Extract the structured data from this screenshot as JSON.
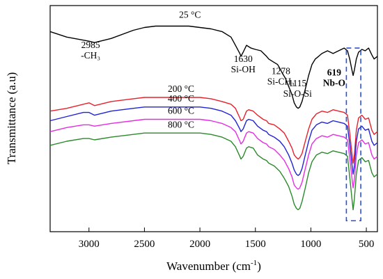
{
  "chart_data": {
    "type": "line",
    "title": "",
    "xlabel": "Wavenumber (cm",
    "xlabel_sup": "-1",
    "xlabel_tail": ")",
    "ylabel": "Transmittance (a.u)",
    "xlim": [
      3350,
      400
    ],
    "x_reversed": true,
    "y_ticks_shown": false,
    "grid": false,
    "x_ticks": [
      3000,
      2500,
      2000,
      1500,
      1000,
      500
    ],
    "x_tick_labels": [
      "3000",
      "2500",
      "2000",
      "1500",
      "1000",
      "500"
    ],
    "series": [
      {
        "name": "25 °C",
        "color": "#000000",
        "points": [
          [
            3350,
            86
          ],
          [
            3200,
            82
          ],
          [
            3000,
            79
          ],
          [
            2950,
            78
          ],
          [
            2800,
            81
          ],
          [
            2600,
            87
          ],
          [
            2500,
            89
          ],
          [
            2400,
            90
          ],
          [
            2300,
            90
          ],
          [
            2100,
            90
          ],
          [
            2000,
            89
          ],
          [
            1900,
            88
          ],
          [
            1800,
            86
          ],
          [
            1720,
            82
          ],
          [
            1680,
            76
          ],
          [
            1640,
            70
          ],
          [
            1630,
            68
          ],
          [
            1610,
            71
          ],
          [
            1580,
            76
          ],
          [
            1540,
            74
          ],
          [
            1500,
            73
          ],
          [
            1450,
            72
          ],
          [
            1400,
            68
          ],
          [
            1380,
            66
          ],
          [
            1340,
            64
          ],
          [
            1300,
            62
          ],
          [
            1278,
            59
          ],
          [
            1260,
            56
          ],
          [
            1230,
            52
          ],
          [
            1200,
            46
          ],
          [
            1170,
            40
          ],
          [
            1150,
            34
          ],
          [
            1130,
            31
          ],
          [
            1115,
            30
          ],
          [
            1100,
            31
          ],
          [
            1080,
            35
          ],
          [
            1050,
            44
          ],
          [
            1020,
            54
          ],
          [
            990,
            62
          ],
          [
            960,
            66
          ],
          [
            930,
            68
          ],
          [
            900,
            70
          ],
          [
            850,
            72
          ],
          [
            800,
            70
          ],
          [
            750,
            72
          ],
          [
            700,
            74
          ],
          [
            670,
            72
          ],
          [
            650,
            66
          ],
          [
            630,
            58
          ],
          [
            619,
            54
          ],
          [
            608,
            58
          ],
          [
            590,
            66
          ],
          [
            570,
            71
          ],
          [
            540,
            73
          ],
          [
            510,
            72
          ],
          [
            480,
            74
          ],
          [
            450,
            69
          ],
          [
            430,
            66
          ],
          [
            400,
            68
          ]
        ]
      },
      {
        "name": "200 °C",
        "color": "#e8202a",
        "points": [
          [
            3350,
            28
          ],
          [
            3200,
            30
          ],
          [
            3050,
            33
          ],
          [
            3000,
            34
          ],
          [
            2950,
            32
          ],
          [
            2800,
            35
          ],
          [
            2600,
            37
          ],
          [
            2500,
            38
          ],
          [
            2300,
            38
          ],
          [
            2100,
            38
          ],
          [
            2000,
            38
          ],
          [
            1900,
            37
          ],
          [
            1800,
            35
          ],
          [
            1720,
            33
          ],
          [
            1680,
            30
          ],
          [
            1640,
            23
          ],
          [
            1630,
            21
          ],
          [
            1610,
            22
          ],
          [
            1580,
            28
          ],
          [
            1560,
            29
          ],
          [
            1520,
            28
          ],
          [
            1480,
            25
          ],
          [
            1430,
            22
          ],
          [
            1400,
            21
          ],
          [
            1380,
            19
          ],
          [
            1330,
            18
          ],
          [
            1280,
            15
          ],
          [
            1240,
            12
          ],
          [
            1200,
            6
          ],
          [
            1170,
            1
          ],
          [
            1150,
            -4
          ],
          [
            1130,
            -6
          ],
          [
            1115,
            -7
          ],
          [
            1100,
            -6
          ],
          [
            1080,
            -3
          ],
          [
            1050,
            6
          ],
          [
            1020,
            15
          ],
          [
            990,
            22
          ],
          [
            950,
            26
          ],
          [
            900,
            28
          ],
          [
            850,
            27
          ],
          [
            800,
            29
          ],
          [
            750,
            28
          ],
          [
            700,
            27
          ],
          [
            670,
            25
          ],
          [
            650,
            12
          ],
          [
            630,
            -3
          ],
          [
            619,
            -10
          ],
          [
            608,
            -4
          ],
          [
            590,
            14
          ],
          [
            570,
            23
          ],
          [
            540,
            25
          ],
          [
            510,
            22
          ],
          [
            480,
            23
          ],
          [
            450,
            14
          ],
          [
            430,
            11
          ],
          [
            400,
            13
          ]
        ]
      },
      {
        "name": "400 °C",
        "color": "#1f22d6",
        "points": [
          [
            3350,
            21
          ],
          [
            3200,
            24
          ],
          [
            3050,
            27
          ],
          [
            3000,
            27
          ],
          [
            2950,
            25
          ],
          [
            2800,
            28
          ],
          [
            2600,
            30
          ],
          [
            2500,
            31
          ],
          [
            2300,
            31
          ],
          [
            2100,
            31
          ],
          [
            2000,
            31
          ],
          [
            1900,
            30
          ],
          [
            1800,
            28
          ],
          [
            1720,
            25
          ],
          [
            1680,
            21
          ],
          [
            1640,
            15
          ],
          [
            1630,
            13
          ],
          [
            1610,
            15
          ],
          [
            1580,
            21
          ],
          [
            1560,
            22
          ],
          [
            1520,
            21
          ],
          [
            1480,
            17
          ],
          [
            1430,
            14
          ],
          [
            1400,
            13
          ],
          [
            1380,
            11
          ],
          [
            1330,
            9
          ],
          [
            1280,
            6
          ],
          [
            1240,
            2
          ],
          [
            1200,
            -4
          ],
          [
            1170,
            -10
          ],
          [
            1150,
            -15
          ],
          [
            1130,
            -18
          ],
          [
            1115,
            -19
          ],
          [
            1100,
            -18
          ],
          [
            1080,
            -14
          ],
          [
            1050,
            -4
          ],
          [
            1020,
            6
          ],
          [
            990,
            14
          ],
          [
            950,
            18
          ],
          [
            900,
            20
          ],
          [
            850,
            19
          ],
          [
            800,
            21
          ],
          [
            750,
            20
          ],
          [
            700,
            19
          ],
          [
            670,
            17
          ],
          [
            650,
            4
          ],
          [
            630,
            -11
          ],
          [
            619,
            -18
          ],
          [
            608,
            -12
          ],
          [
            590,
            6
          ],
          [
            570,
            15
          ],
          [
            540,
            17
          ],
          [
            510,
            14
          ],
          [
            480,
            15
          ],
          [
            450,
            6
          ],
          [
            430,
            3
          ],
          [
            400,
            5
          ]
        ]
      },
      {
        "name": "600 °C",
        "color": "#e62ce3",
        "points": [
          [
            3350,
            13
          ],
          [
            3200,
            16
          ],
          [
            3050,
            18
          ],
          [
            3000,
            18
          ],
          [
            2950,
            17
          ],
          [
            2800,
            19
          ],
          [
            2600,
            21
          ],
          [
            2500,
            22
          ],
          [
            2300,
            22
          ],
          [
            2100,
            22
          ],
          [
            2000,
            22
          ],
          [
            1900,
            21
          ],
          [
            1800,
            19
          ],
          [
            1720,
            16
          ],
          [
            1680,
            13
          ],
          [
            1640,
            6
          ],
          [
            1630,
            4
          ],
          [
            1610,
            6
          ],
          [
            1580,
            12
          ],
          [
            1560,
            13
          ],
          [
            1520,
            12
          ],
          [
            1480,
            8
          ],
          [
            1430,
            5
          ],
          [
            1400,
            4
          ],
          [
            1380,
            2
          ],
          [
            1330,
            0
          ],
          [
            1280,
            -4
          ],
          [
            1240,
            -8
          ],
          [
            1200,
            -14
          ],
          [
            1170,
            -20
          ],
          [
            1150,
            -26
          ],
          [
            1130,
            -28
          ],
          [
            1115,
            -29
          ],
          [
            1100,
            -28
          ],
          [
            1080,
            -24
          ],
          [
            1050,
            -14
          ],
          [
            1020,
            -4
          ],
          [
            990,
            4
          ],
          [
            950,
            8
          ],
          [
            900,
            10
          ],
          [
            850,
            9
          ],
          [
            800,
            11
          ],
          [
            750,
            10
          ],
          [
            700,
            9
          ],
          [
            670,
            7
          ],
          [
            650,
            -6
          ],
          [
            630,
            -21
          ],
          [
            619,
            -28
          ],
          [
            608,
            -22
          ],
          [
            590,
            -4
          ],
          [
            570,
            5
          ],
          [
            540,
            7
          ],
          [
            510,
            4
          ],
          [
            480,
            5
          ],
          [
            450,
            -4
          ],
          [
            430,
            -7
          ],
          [
            400,
            -5
          ]
        ]
      },
      {
        "name": "800 °C",
        "color": "#2a8a2a",
        "points": [
          [
            3350,
            3
          ],
          [
            3200,
            6
          ],
          [
            3050,
            8
          ],
          [
            3000,
            8
          ],
          [
            2950,
            7
          ],
          [
            2800,
            9
          ],
          [
            2600,
            11
          ],
          [
            2500,
            12
          ],
          [
            2300,
            12
          ],
          [
            2100,
            12
          ],
          [
            2000,
            12
          ],
          [
            1900,
            11
          ],
          [
            1800,
            9
          ],
          [
            1720,
            6
          ],
          [
            1680,
            2
          ],
          [
            1640,
            -5
          ],
          [
            1630,
            -7
          ],
          [
            1610,
            -5
          ],
          [
            1580,
            1
          ],
          [
            1560,
            2
          ],
          [
            1520,
            1
          ],
          [
            1480,
            -4
          ],
          [
            1430,
            -7
          ],
          [
            1400,
            -8
          ],
          [
            1380,
            -10
          ],
          [
            1330,
            -12
          ],
          [
            1280,
            -16
          ],
          [
            1240,
            -21
          ],
          [
            1200,
            -27
          ],
          [
            1170,
            -34
          ],
          [
            1150,
            -40
          ],
          [
            1130,
            -43
          ],
          [
            1115,
            -44
          ],
          [
            1100,
            -43
          ],
          [
            1080,
            -38
          ],
          [
            1050,
            -28
          ],
          [
            1020,
            -17
          ],
          [
            990,
            -9
          ],
          [
            950,
            -4
          ],
          [
            900,
            -2
          ],
          [
            850,
            -3
          ],
          [
            800,
            -1
          ],
          [
            750,
            -2
          ],
          [
            700,
            -3
          ],
          [
            670,
            -5
          ],
          [
            650,
            -20
          ],
          [
            630,
            -36
          ],
          [
            619,
            -44
          ],
          [
            608,
            -36
          ],
          [
            590,
            -18
          ],
          [
            570,
            -8
          ],
          [
            540,
            -6
          ],
          [
            510,
            -9
          ],
          [
            480,
            -8
          ],
          [
            450,
            -17
          ],
          [
            430,
            -20
          ],
          [
            400,
            -18
          ]
        ]
      }
    ],
    "series_labels": [
      {
        "text": "25 °C",
        "x": 2090,
        "y": 96
      },
      {
        "text": "200 °C",
        "x": 2170,
        "y": 42
      },
      {
        "text": "400 °C",
        "x": 2170,
        "y": 35
      },
      {
        "text": "600 °C",
        "x": 2170,
        "y": 26
      },
      {
        "text": "800 °C",
        "x": 2170,
        "y": 16
      }
    ],
    "annotations": [
      {
        "lines": [
          "2985",
          "-CH₃"
        ],
        "x": 2985,
        "y": 74,
        "bold": false
      },
      {
        "lines": [
          "1630",
          "Si-OH"
        ],
        "x": 1610,
        "y": 64,
        "bold": false
      },
      {
        "lines": [
          "1278",
          "Si-CH₃"
        ],
        "x": 1270,
        "y": 55,
        "bold": false
      },
      {
        "lines": [
          "1115",
          "Si-O-Si"
        ],
        "x": 1120,
        "y": 46,
        "bold": false
      },
      {
        "lines": [
          "619",
          "Nb-O"
        ],
        "x": 790,
        "y": 54,
        "bold": true
      }
    ],
    "highlight_box": {
      "x_from": 680,
      "x_to": 550,
      "y_from": -52,
      "y_to": 74,
      "color": "#2c4fd6"
    },
    "ylim": [
      -60,
      105
    ]
  }
}
